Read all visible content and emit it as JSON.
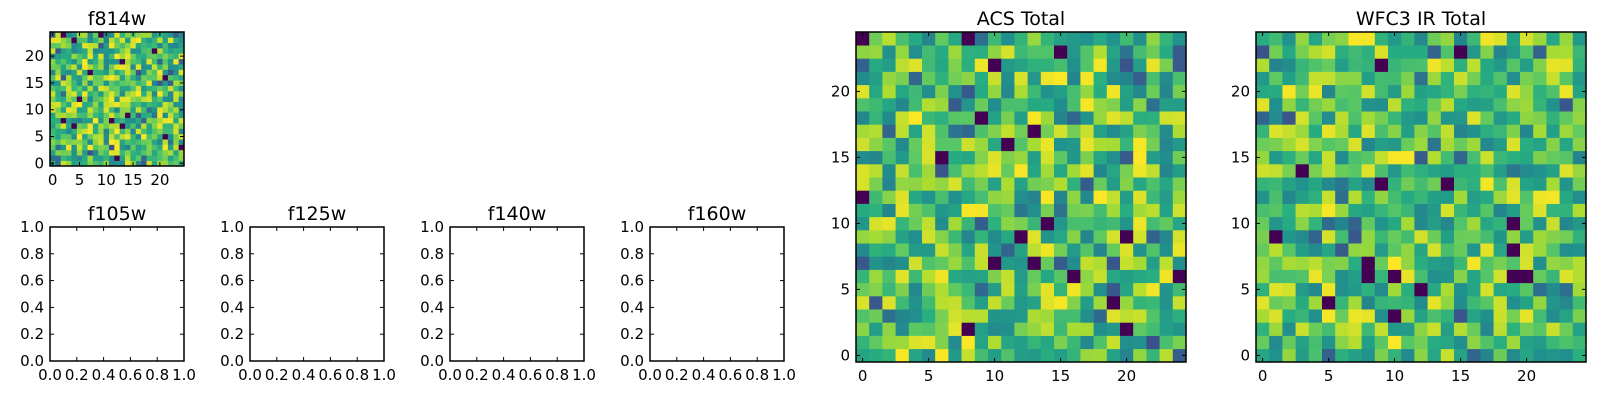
{
  "chart_data": [
    {
      "panel": "f814w",
      "type": "heatmap",
      "title": "f814w",
      "grid_size": 25,
      "colormap": "viridis",
      "xlim": [
        -0.5,
        24.5
      ],
      "ylim": [
        -0.5,
        24.5
      ],
      "xticks": [
        0,
        5,
        10,
        15,
        20
      ],
      "yticks": [
        0,
        5,
        10,
        15,
        20
      ],
      "xtick_labels": [
        "0",
        "5",
        "10",
        "15",
        "20"
      ],
      "ytick_labels": [
        "0",
        "5",
        "10",
        "15",
        "20"
      ],
      "seed": 11,
      "grid": false
    },
    {
      "panel": "f105w",
      "type": "scatter",
      "title": "f105w",
      "empty": true,
      "xlim": [
        0,
        1
      ],
      "ylim": [
        0,
        1
      ],
      "xticks": [
        0,
        0.2,
        0.4,
        0.6,
        0.8,
        1.0
      ],
      "yticks": [
        0,
        0.2,
        0.4,
        0.6,
        0.8,
        1.0
      ],
      "xtick_labels": [
        "0.0",
        "0.2",
        "0.4",
        "0.6",
        "0.8",
        "1.0"
      ],
      "ytick_labels": [
        "0.0",
        "0.2",
        "0.4",
        "0.6",
        "0.8",
        "1.0"
      ]
    },
    {
      "panel": "f125w",
      "type": "scatter",
      "title": "f125w",
      "empty": true,
      "xlim": [
        0,
        1
      ],
      "ylim": [
        0,
        1
      ],
      "xticks": [
        0,
        0.2,
        0.4,
        0.6,
        0.8,
        1.0
      ],
      "yticks": [
        0,
        0.2,
        0.4,
        0.6,
        0.8,
        1.0
      ],
      "xtick_labels": [
        "0.0",
        "0.2",
        "0.4",
        "0.6",
        "0.8",
        "1.0"
      ],
      "ytick_labels": [
        "0.0",
        "0.2",
        "0.4",
        "0.6",
        "0.8",
        "1.0"
      ]
    },
    {
      "panel": "f140w",
      "type": "scatter",
      "title": "f140w",
      "empty": true,
      "xlim": [
        0,
        1
      ],
      "ylim": [
        0,
        1
      ],
      "xticks": [
        0,
        0.2,
        0.4,
        0.6,
        0.8,
        1.0
      ],
      "yticks": [
        0,
        0.2,
        0.4,
        0.6,
        0.8,
        1.0
      ],
      "xtick_labels": [
        "0.0",
        "0.2",
        "0.4",
        "0.6",
        "0.8",
        "1.0"
      ],
      "ytick_labels": [
        "0.0",
        "0.2",
        "0.4",
        "0.6",
        "0.8",
        "1.0"
      ]
    },
    {
      "panel": "f160w",
      "type": "scatter",
      "title": "f160w",
      "empty": true,
      "xlim": [
        0,
        1
      ],
      "ylim": [
        0,
        1
      ],
      "xticks": [
        0,
        0.2,
        0.4,
        0.6,
        0.8,
        1.0
      ],
      "yticks": [
        0,
        0.2,
        0.4,
        0.6,
        0.8,
        1.0
      ],
      "xtick_labels": [
        "0.0",
        "0.2",
        "0.4",
        "0.6",
        "0.8",
        "1.0"
      ],
      "ytick_labels": [
        "0.0",
        "0.2",
        "0.4",
        "0.6",
        "0.8",
        "1.0"
      ]
    },
    {
      "panel": "acs-total",
      "type": "heatmap",
      "title": "ACS Total",
      "grid_size": 25,
      "colormap": "viridis",
      "xlim": [
        -0.5,
        24.5
      ],
      "ylim": [
        -0.5,
        24.5
      ],
      "xticks": [
        0,
        5,
        10,
        15,
        20
      ],
      "yticks": [
        0,
        5,
        10,
        15,
        20
      ],
      "xtick_labels": [
        "0",
        "5",
        "10",
        "15",
        "20"
      ],
      "ytick_labels": [
        "0",
        "5",
        "10",
        "15",
        "20"
      ],
      "seed": 27,
      "grid": false
    },
    {
      "panel": "wfc3-ir-total",
      "type": "heatmap",
      "title": "WFC3 IR Total",
      "grid_size": 25,
      "colormap": "viridis",
      "xlim": [
        -0.5,
        24.5
      ],
      "ylim": [
        -0.5,
        24.5
      ],
      "xticks": [
        0,
        5,
        10,
        15,
        20
      ],
      "yticks": [
        0,
        5,
        10,
        15,
        20
      ],
      "xtick_labels": [
        "0",
        "5",
        "10",
        "15",
        "20"
      ],
      "ytick_labels": [
        "0",
        "5",
        "10",
        "15",
        "20"
      ],
      "seed": 53,
      "grid": false
    }
  ]
}
